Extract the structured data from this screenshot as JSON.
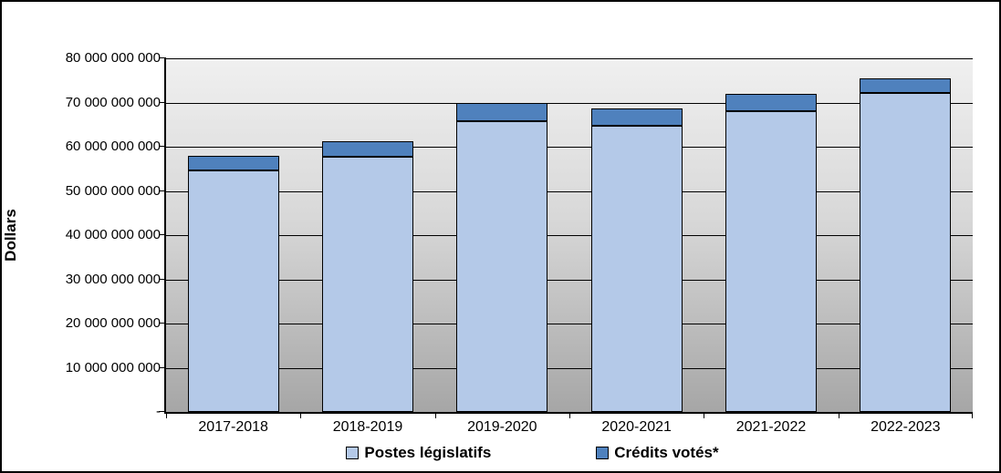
{
  "chart_data": {
    "type": "bar",
    "stacked": true,
    "title": "",
    "xlabel": "",
    "ylabel": "Dollars",
    "ylim": [
      0,
      80000000000
    ],
    "grid": true,
    "legend_position": "bottom",
    "categories": [
      "2017-2018",
      "2018-2019",
      "2019-2020",
      "2020-2021",
      "2021-2022",
      "2022-2023"
    ],
    "series": [
      {
        "name": "Postes législatifs",
        "color": "#b4c9e8",
        "values": [
          54600000000,
          57700000000,
          65800000000,
          64700000000,
          68100000000,
          72100000000
        ]
      },
      {
        "name": "Crédits votés*",
        "color": "#4f81bd",
        "values": [
          3400000000,
          3500000000,
          4000000000,
          3900000000,
          3800000000,
          3300000000
        ]
      }
    ],
    "totals": [
      58000000000,
      61200000000,
      69800000000,
      68600000000,
      71900000000,
      75400000000
    ],
    "ytick_labels_bottom_to_top": [
      "-",
      "10 000 000 000",
      "20 000 000 000",
      "30 000 000 000",
      "40 000 000 000",
      "50 000 000 000",
      "60 000 000 000",
      "70 000 000 000",
      "80 000 000 000"
    ]
  }
}
